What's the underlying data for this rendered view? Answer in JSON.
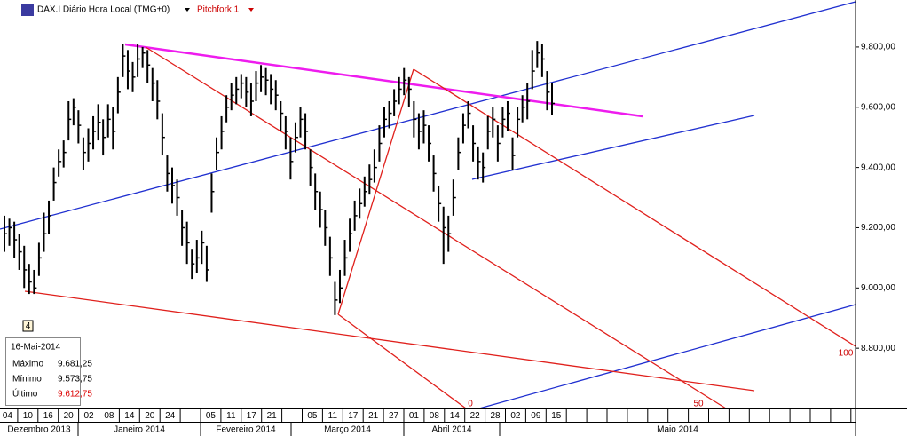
{
  "header": {
    "title": "DAX.I Diário Hora Local (TMG+0)",
    "tool": "Pitchfork 1",
    "marker": "4"
  },
  "pitchfork_labels": [
    "0",
    "50",
    "100"
  ],
  "info": {
    "date": "16-Mai-2014",
    "rows": [
      {
        "label": "Máximo",
        "value": "9.681,25"
      },
      {
        "label": "Mínimo",
        "value": "9.573,75"
      },
      {
        "label": "Último",
        "value": "9.612,75"
      }
    ]
  },
  "chart_data": {
    "type": "hlc",
    "ylim": [
      8600,
      9956
    ],
    "yticks": [
      {
        "value": 8800,
        "label": "8.800,00"
      },
      {
        "value": 9000,
        "label": "9.000,00"
      },
      {
        "value": 9200,
        "label": "9.200,00"
      },
      {
        "value": 9400,
        "label": "9.400,00"
      },
      {
        "value": 9600,
        "label": "9.600,00"
      },
      {
        "value": 9800,
        "label": "9.800,00"
      }
    ],
    "x_labels": [
      "04",
      "10",
      "16",
      "20",
      "02",
      "08",
      "14",
      "20",
      "24",
      null,
      "05",
      "11",
      "17",
      "21",
      null,
      "05",
      "11",
      "17",
      "21",
      "27",
      "01",
      "08",
      "14",
      "22",
      "28",
      "02",
      "09",
      "15",
      null,
      null,
      null,
      null,
      null,
      null,
      null,
      null,
      null,
      null,
      null,
      null,
      null,
      null
    ],
    "months": [
      "Dezembro 2013",
      "Janeiro 2014",
      "Fevereiro 2014",
      "Março 2014",
      "Abril 2014",
      "Maio 2014"
    ],
    "color": "#000000",
    "high": [
      9240,
      9230,
      9220,
      9180,
      9140,
      9080,
      9060,
      9150,
      9250,
      9290,
      9400,
      9460,
      9490,
      9620,
      9630,
      9590,
      9500,
      9530,
      9570,
      9610,
      9560,
      9610,
      9600,
      9700,
      9810,
      9790,
      9750,
      9810,
      9800,
      9790,
      9730,
      9690,
      9580,
      9440,
      9400,
      9360,
      9260,
      9220,
      9130,
      9160,
      9190,
      9140,
      9380,
      9500,
      9570,
      9640,
      9680,
      9700,
      9710,
      9700,
      9680,
      9720,
      9740,
      9730,
      9710,
      9690,
      9620,
      9570,
      9500,
      9550,
      9600,
      9580,
      9460,
      9380,
      9320,
      9260,
      9170,
      9020,
      9060,
      9160,
      9230,
      9290,
      9330,
      9370,
      9410,
      9460,
      9540,
      9600,
      9620,
      9660,
      9700,
      9730,
      9700,
      9620,
      9580,
      9590,
      9540,
      9440,
      9340,
      9270,
      9240,
      9360,
      9500,
      9580,
      9620,
      9540,
      9470,
      9450,
      9570,
      9600,
      9540,
      9600,
      9620,
      9500,
      9600,
      9640,
      9680,
      9790,
      9820,
      9810,
      9720,
      9681.25
    ],
    "low": [
      9120,
      9140,
      9100,
      9060,
      9000,
      8980,
      8980,
      9040,
      9120,
      9180,
      9290,
      9370,
      9400,
      9490,
      9540,
      9480,
      9390,
      9420,
      9460,
      9490,
      9440,
      9500,
      9460,
      9580,
      9700,
      9660,
      9650,
      9700,
      9730,
      9680,
      9620,
      9560,
      9440,
      9320,
      9280,
      9240,
      9140,
      9080,
      9030,
      9050,
      9080,
      9020,
      9250,
      9390,
      9460,
      9550,
      9590,
      9610,
      9630,
      9600,
      9570,
      9620,
      9650,
      9640,
      9610,
      9590,
      9520,
      9460,
      9360,
      9450,
      9500,
      9460,
      9340,
      9260,
      9200,
      9140,
      9040,
      8910,
      8950,
      9040,
      9120,
      9190,
      9230,
      9270,
      9310,
      9350,
      9420,
      9500,
      9530,
      9570,
      9610,
      9640,
      9600,
      9500,
      9460,
      9480,
      9420,
      9320,
      9220,
      9080,
      9120,
      9240,
      9390,
      9480,
      9530,
      9420,
      9360,
      9350,
      9460,
      9500,
      9420,
      9500,
      9520,
      9390,
      9500,
      9550,
      9560,
      9660,
      9730,
      9700,
      9590,
      9573.75
    ],
    "close": [
      9180,
      9200,
      9160,
      9120,
      9060,
      9020,
      9000,
      9100,
      9180,
      9240,
      9350,
      9420,
      9450,
      9560,
      9600,
      9540,
      9450,
      9480,
      9520,
      9550,
      9500,
      9560,
      9520,
      9650,
      9770,
      9720,
      9700,
      9760,
      9780,
      9740,
      9680,
      9620,
      9500,
      9380,
      9340,
      9300,
      9200,
      9150,
      9080,
      9100,
      9150,
      9060,
      9320,
      9450,
      9520,
      9600,
      9640,
      9660,
      9680,
      9650,
      9620,
      9680,
      9700,
      9690,
      9660,
      9640,
      9580,
      9520,
      9420,
      9500,
      9560,
      9520,
      9400,
      9320,
      9260,
      9200,
      9100,
      8960,
      9000,
      9100,
      9180,
      9240,
      9280,
      9320,
      9360,
      9400,
      9480,
      9560,
      9580,
      9620,
      9660,
      9690,
      9660,
      9560,
      9520,
      9540,
      9480,
      9380,
      9280,
      9200,
      9180,
      9300,
      9450,
      9540,
      9580,
      9480,
      9420,
      9400,
      9520,
      9560,
      9480,
      9560,
      9580,
      9440,
      9560,
      9600,
      9620,
      9720,
      9780,
      9760,
      9650,
      9612.75
    ]
  }
}
